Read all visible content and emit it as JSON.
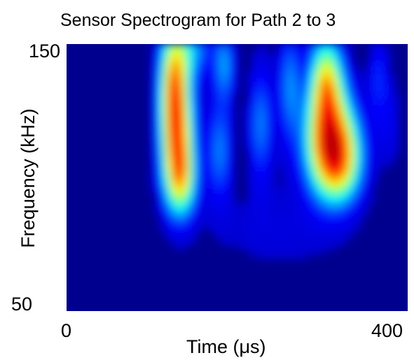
{
  "chart_data": {
    "type": "heatmap",
    "title": "Sensor Spectrogram for Path 2 to 3",
    "xlabel": "Time (μs)",
    "ylabel": "Frequency (kHz)",
    "x_ticks": [
      "0",
      "400"
    ],
    "y_ticks": [
      "150",
      "50"
    ],
    "xlim": [
      0,
      400
    ],
    "ylim": [
      50,
      150
    ],
    "colormap": [
      "#00008f",
      "#0000ff",
      "#00ffff",
      "#ffff00",
      "#ff0000",
      "#800000"
    ],
    "background_color": "#00008f",
    "blobs": [
      {
        "t": 130,
        "f": 115,
        "sigma_t": 14,
        "sigma_f": 16,
        "amplitude": 0.55
      },
      {
        "t": 126,
        "f": 138,
        "sigma_t": 12,
        "sigma_f": 14,
        "amplitude": 0.42
      },
      {
        "t": 135,
        "f": 98,
        "sigma_t": 13,
        "sigma_f": 10,
        "amplitude": 0.3
      },
      {
        "t": 150,
        "f": 148,
        "sigma_t": 18,
        "sigma_f": 8,
        "amplitude": 0.2
      },
      {
        "t": 186,
        "f": 142,
        "sigma_t": 8,
        "sigma_f": 10,
        "amplitude": 0.22
      },
      {
        "t": 180,
        "f": 110,
        "sigma_t": 10,
        "sigma_f": 14,
        "amplitude": 0.22
      },
      {
        "t": 228,
        "f": 120,
        "sigma_t": 10,
        "sigma_f": 16,
        "amplitude": 0.22
      },
      {
        "t": 262,
        "f": 135,
        "sigma_t": 9,
        "sigma_f": 16,
        "amplitude": 0.22
      },
      {
        "t": 305,
        "f": 137,
        "sigma_t": 14,
        "sigma_f": 12,
        "amplitude": 0.45
      },
      {
        "t": 300,
        "f": 114,
        "sigma_t": 18,
        "sigma_f": 14,
        "amplitude": 0.32
      },
      {
        "t": 318,
        "f": 113,
        "sigma_t": 20,
        "sigma_f": 13,
        "amplitude": 0.42
      },
      {
        "t": 322,
        "f": 103,
        "sigma_t": 18,
        "sigma_f": 10,
        "amplitude": 0.25
      },
      {
        "t": 366,
        "f": 138,
        "sigma_t": 8,
        "sigma_f": 12,
        "amplitude": 0.14
      },
      {
        "t": 380,
        "f": 120,
        "sigma_t": 10,
        "sigma_f": 12,
        "amplitude": 0.08
      },
      {
        "t": 250,
        "f": 80,
        "sigma_t": 60,
        "sigma_f": 12,
        "amplitude": 0.06
      }
    ]
  }
}
